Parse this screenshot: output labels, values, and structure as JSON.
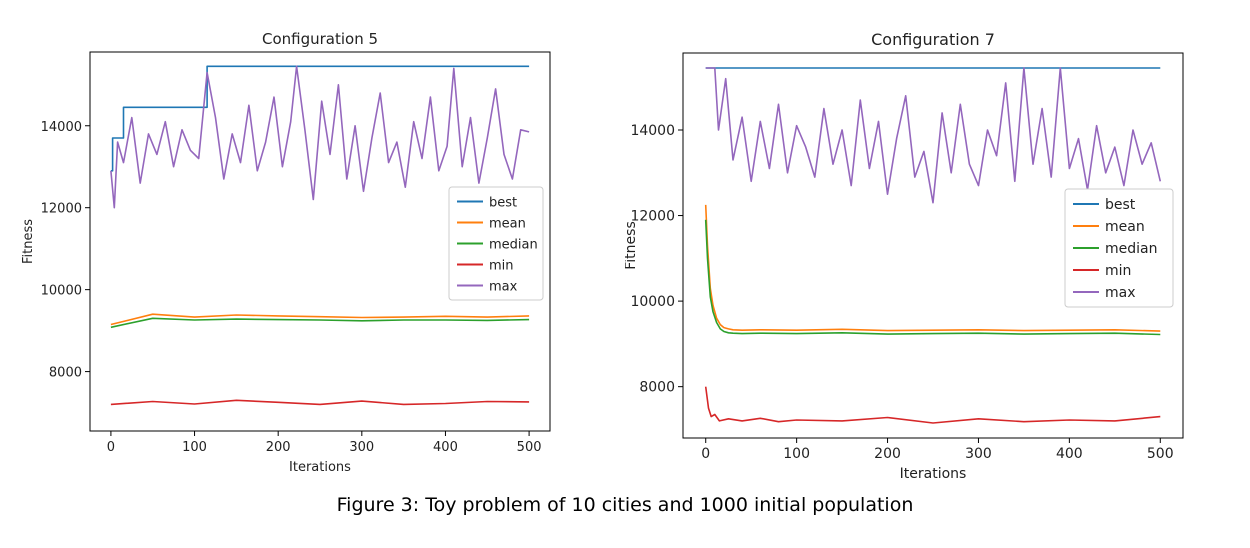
{
  "caption": "Figure 3: Toy problem of 10 cities and 1000 initial population",
  "colors": {
    "best": "#1f77b4",
    "mean": "#ff7f0e",
    "median": "#2ca02c",
    "min": "#d62728",
    "max": "#9467bd"
  },
  "chart_data": [
    {
      "type": "line",
      "title": "Configuration 5",
      "xlabel": "Iterations",
      "ylabel": "Fitness",
      "xlim": [
        -25,
        525
      ],
      "ylim": [
        6550,
        15800
      ],
      "xticks": [
        0,
        100,
        200,
        300,
        400,
        500
      ],
      "yticks": [
        8000,
        10000,
        12000,
        14000
      ],
      "legend": "center-right",
      "grid": false,
      "series": [
        {
          "name": "best",
          "color": "#1f77b4",
          "x": [
            0,
            2,
            2,
            15,
            15,
            115,
            115,
            500
          ],
          "y": [
            12900,
            12900,
            13700,
            13700,
            14450,
            14450,
            15450,
            15450
          ]
        },
        {
          "name": "mean",
          "color": "#ff7f0e",
          "x": [
            0,
            50,
            100,
            150,
            200,
            250,
            300,
            350,
            400,
            450,
            500
          ],
          "y": [
            9150,
            9400,
            9330,
            9380,
            9360,
            9340,
            9320,
            9330,
            9350,
            9330,
            9360
          ]
        },
        {
          "name": "median",
          "color": "#2ca02c",
          "x": [
            0,
            50,
            100,
            150,
            200,
            250,
            300,
            350,
            400,
            450,
            500
          ],
          "y": [
            9080,
            9300,
            9260,
            9280,
            9270,
            9260,
            9240,
            9260,
            9260,
            9250,
            9270
          ]
        },
        {
          "name": "min",
          "color": "#d62728",
          "x": [
            0,
            50,
            100,
            150,
            200,
            250,
            300,
            350,
            400,
            450,
            500
          ],
          "y": [
            7200,
            7270,
            7210,
            7300,
            7250,
            7200,
            7280,
            7200,
            7220,
            7270,
            7260
          ]
        },
        {
          "name": "max",
          "color": "#9467bd",
          "x": [
            0,
            4,
            8,
            15,
            25,
            35,
            45,
            55,
            65,
            75,
            85,
            95,
            105,
            115,
            125,
            135,
            145,
            155,
            165,
            175,
            185,
            195,
            205,
            215,
            222,
            232,
            242,
            252,
            262,
            272,
            282,
            292,
            302,
            312,
            322,
            332,
            342,
            352,
            362,
            372,
            382,
            392,
            402,
            410,
            420,
            430,
            440,
            450,
            460,
            470,
            480,
            490,
            500
          ],
          "y": [
            12900,
            12000,
            13600,
            13100,
            14200,
            12600,
            13800,
            13300,
            14100,
            13000,
            13900,
            13400,
            13200,
            15300,
            14200,
            12700,
            13800,
            13100,
            14500,
            12900,
            13600,
            14700,
            13000,
            14100,
            15450,
            13900,
            12200,
            14600,
            13300,
            15000,
            12700,
            14000,
            12400,
            13700,
            14800,
            13100,
            13600,
            12500,
            14100,
            13200,
            14700,
            12900,
            13500,
            15400,
            13000,
            14200,
            12600,
            13700,
            14900,
            13300,
            12700,
            13900,
            13850
          ]
        }
      ]
    },
    {
      "type": "line",
      "title": "Configuration 7",
      "xlabel": "Iterations",
      "ylabel": "Fitness",
      "xlim": [
        -25,
        525
      ],
      "ylim": [
        6800,
        15800
      ],
      "xticks": [
        0,
        100,
        200,
        300,
        400,
        500
      ],
      "yticks": [
        8000,
        10000,
        12000,
        14000
      ],
      "legend": "center-right",
      "grid": false,
      "series": [
        {
          "name": "best",
          "color": "#1f77b4",
          "x": [
            0,
            500
          ],
          "y": [
            15450,
            15450
          ]
        },
        {
          "name": "mean",
          "color": "#ff7f0e",
          "x": [
            0,
            2,
            5,
            8,
            12,
            16,
            20,
            25,
            30,
            40,
            60,
            100,
            150,
            200,
            250,
            300,
            350,
            400,
            450,
            500
          ],
          "y": [
            12250,
            11300,
            10300,
            9900,
            9600,
            9450,
            9380,
            9350,
            9330,
            9320,
            9330,
            9320,
            9340,
            9310,
            9320,
            9330,
            9310,
            9320,
            9330,
            9300
          ]
        },
        {
          "name": "median",
          "color": "#2ca02c",
          "x": [
            0,
            2,
            5,
            8,
            12,
            16,
            20,
            25,
            30,
            40,
            60,
            100,
            150,
            200,
            250,
            300,
            350,
            400,
            450,
            500
          ],
          "y": [
            11900,
            11000,
            10100,
            9750,
            9500,
            9350,
            9290,
            9260,
            9250,
            9240,
            9250,
            9240,
            9260,
            9230,
            9240,
            9250,
            9230,
            9240,
            9250,
            9220
          ]
        },
        {
          "name": "min",
          "color": "#d62728",
          "x": [
            0,
            3,
            6,
            10,
            15,
            25,
            40,
            60,
            80,
            100,
            150,
            200,
            250,
            300,
            350,
            400,
            450,
            500
          ],
          "y": [
            8000,
            7500,
            7300,
            7350,
            7200,
            7250,
            7200,
            7260,
            7180,
            7220,
            7200,
            7280,
            7150,
            7250,
            7180,
            7220,
            7200,
            7300
          ]
        },
        {
          "name": "max",
          "color": "#9467bd",
          "x": [
            0,
            10,
            14,
            22,
            30,
            40,
            50,
            60,
            70,
            80,
            90,
            100,
            110,
            120,
            130,
            140,
            150,
            160,
            170,
            180,
            190,
            200,
            210,
            220,
            230,
            240,
            250,
            260,
            270,
            280,
            290,
            300,
            310,
            320,
            330,
            340,
            350,
            360,
            370,
            380,
            390,
            400,
            410,
            420,
            430,
            440,
            450,
            460,
            470,
            480,
            490,
            500
          ],
          "y": [
            15450,
            15450,
            14000,
            15200,
            13300,
            14300,
            12800,
            14200,
            13100,
            14600,
            13000,
            14100,
            13600,
            12900,
            14500,
            13200,
            14000,
            12700,
            14700,
            13100,
            14200,
            12500,
            13800,
            14800,
            12900,
            13500,
            12300,
            14400,
            13000,
            14600,
            13200,
            12700,
            14000,
            13400,
            15100,
            12800,
            15450,
            13200,
            14500,
            12900,
            15450,
            13100,
            13800,
            12600,
            14100,
            13000,
            13600,
            12700,
            14000,
            13200,
            13700,
            12800
          ]
        }
      ]
    }
  ]
}
